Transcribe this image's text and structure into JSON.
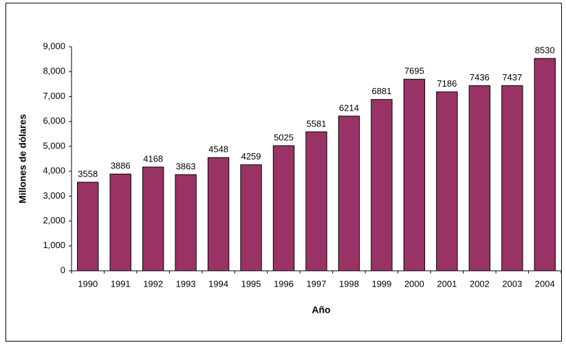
{
  "chart_data": {
    "type": "bar",
    "x_label": "Año",
    "y_label": "Millones de dólares",
    "categories": [
      "1990",
      "1991",
      "1992",
      "1993",
      "1994",
      "1995",
      "1996",
      "1997",
      "1998",
      "1999",
      "2000",
      "2001",
      "2002",
      "2003",
      "2004"
    ],
    "values": [
      3558,
      3886,
      4168,
      3863,
      4548,
      4259,
      5025,
      5581,
      6214,
      6881,
      7695,
      7186,
      7436,
      7437,
      8530
    ],
    "color": "#993366",
    "ylim": [
      0,
      9000
    ],
    "yticks": [
      0,
      {
        "value": 1000,
        "label": "1,000"
      },
      {
        "value": 2000,
        "label": "2,000"
      },
      {
        "value": 3000,
        "label": "3,000"
      },
      {
        "value": 4000,
        "label": "4,000"
      },
      {
        "value": 5000,
        "label": "5,000"
      },
      {
        "value": 6000,
        "label": "6,000"
      },
      {
        "value": 7000,
        "label": "7,000"
      },
      {
        "value": 8000,
        "label": "8,000"
      },
      {
        "value": 9000,
        "label": "9,000"
      }
    ],
    "grid": false
  }
}
